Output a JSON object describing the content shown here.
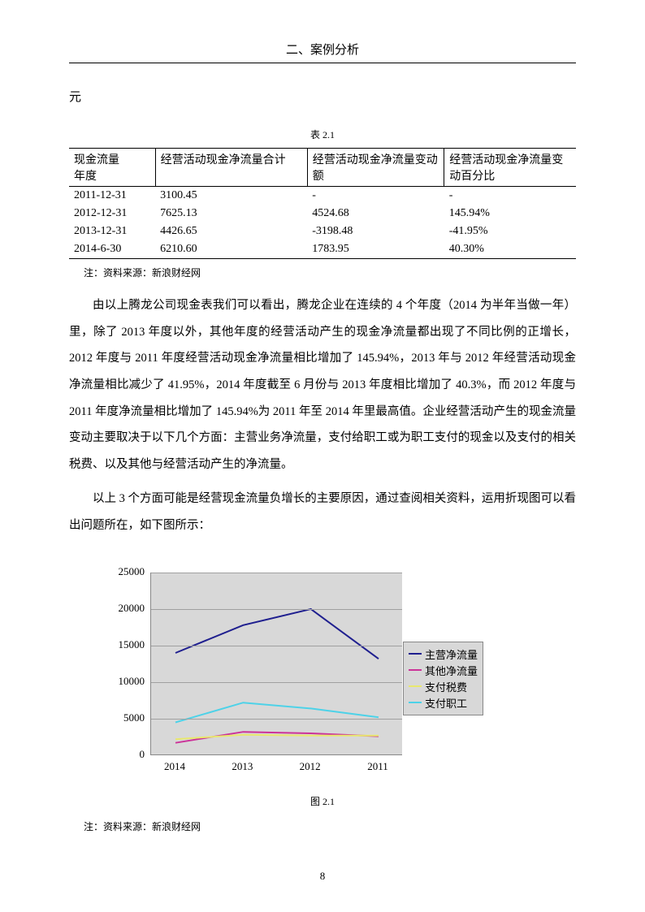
{
  "header": {
    "title": "二、案例分析"
  },
  "yuan": "元",
  "table": {
    "caption": "表 2.1",
    "columns": [
      "现金流量\n年度",
      "经营活动现金净流量合计",
      "经营活动现金净流量变动额",
      "经营活动现金净流量变动百分比"
    ],
    "rows": [
      [
        "2011-12-31",
        "3100.45",
        "-",
        "-"
      ],
      [
        "2012-12-31",
        "7625.13",
        "4524.68",
        "145.94%"
      ],
      [
        "2013-12-31",
        "4426.65",
        "-3198.48",
        "-41.95%"
      ],
      [
        "2014-6-30",
        "6210.60",
        "1783.95",
        "40.30%"
      ]
    ],
    "source_note": "注：资料来源：新浪财经网"
  },
  "body": {
    "p1": "由以上腾龙公司现金表我们可以看出，腾龙企业在连续的 4 个年度（2014 为半年当做一年）里，除了 2013 年度以外，其他年度的经营活动产生的现金净流量都出现了不同比例的正增长，2012 年度与 2011 年度经营活动现金净流量相比增加了 145.94%，2013 年与 2012 年经营活动现金净流量相比减少了 41.95%，2014 年度截至 6 月份与 2013 年度相比增加了 40.3%，而 2012 年度与 2011 年度净流量相比增加了 145.94%为 2011 年至 2014 年里最高值。企业经营活动产生的现金流量变动主要取决于以下几个方面：主营业务净流量，支付给职工或为职工支付的现金以及支付的相关税费、以及其他与经营活动产生的净流量。",
    "p2": "以上 3 个方面可能是经营现金流量负增长的主要原因，通过查阅相关资料，运用折现图可以看出问题所在，如下图所示："
  },
  "chart": {
    "type": "line",
    "background_color": "#d8d8d8",
    "grid_color": "#a0a0a0",
    "ylim": [
      0,
      25000
    ],
    "ytick_step": 5000,
    "yticks": [
      0,
      5000,
      10000,
      15000,
      20000,
      25000
    ],
    "x_categories": [
      "2014",
      "2013",
      "2012",
      "2011"
    ],
    "series": [
      {
        "name": "主营净流量",
        "color": "#1f1f8f",
        "values": [
          14000,
          17800,
          20000,
          13200
        ]
      },
      {
        "name": "其他净流量",
        "color": "#cc3399",
        "values": [
          1700,
          3200,
          3000,
          2600
        ]
      },
      {
        "name": "支付税费",
        "color": "#e8e86e",
        "values": [
          2200,
          2800,
          2700,
          2700
        ]
      },
      {
        "name": "支付职工",
        "color": "#4dd2e8",
        "values": [
          4500,
          7200,
          6400,
          5200
        ]
      }
    ],
    "label_fontsize": 13,
    "caption": "图 2.1",
    "source_note": "注：资料来源：新浪财经网"
  },
  "page_number": "8"
}
